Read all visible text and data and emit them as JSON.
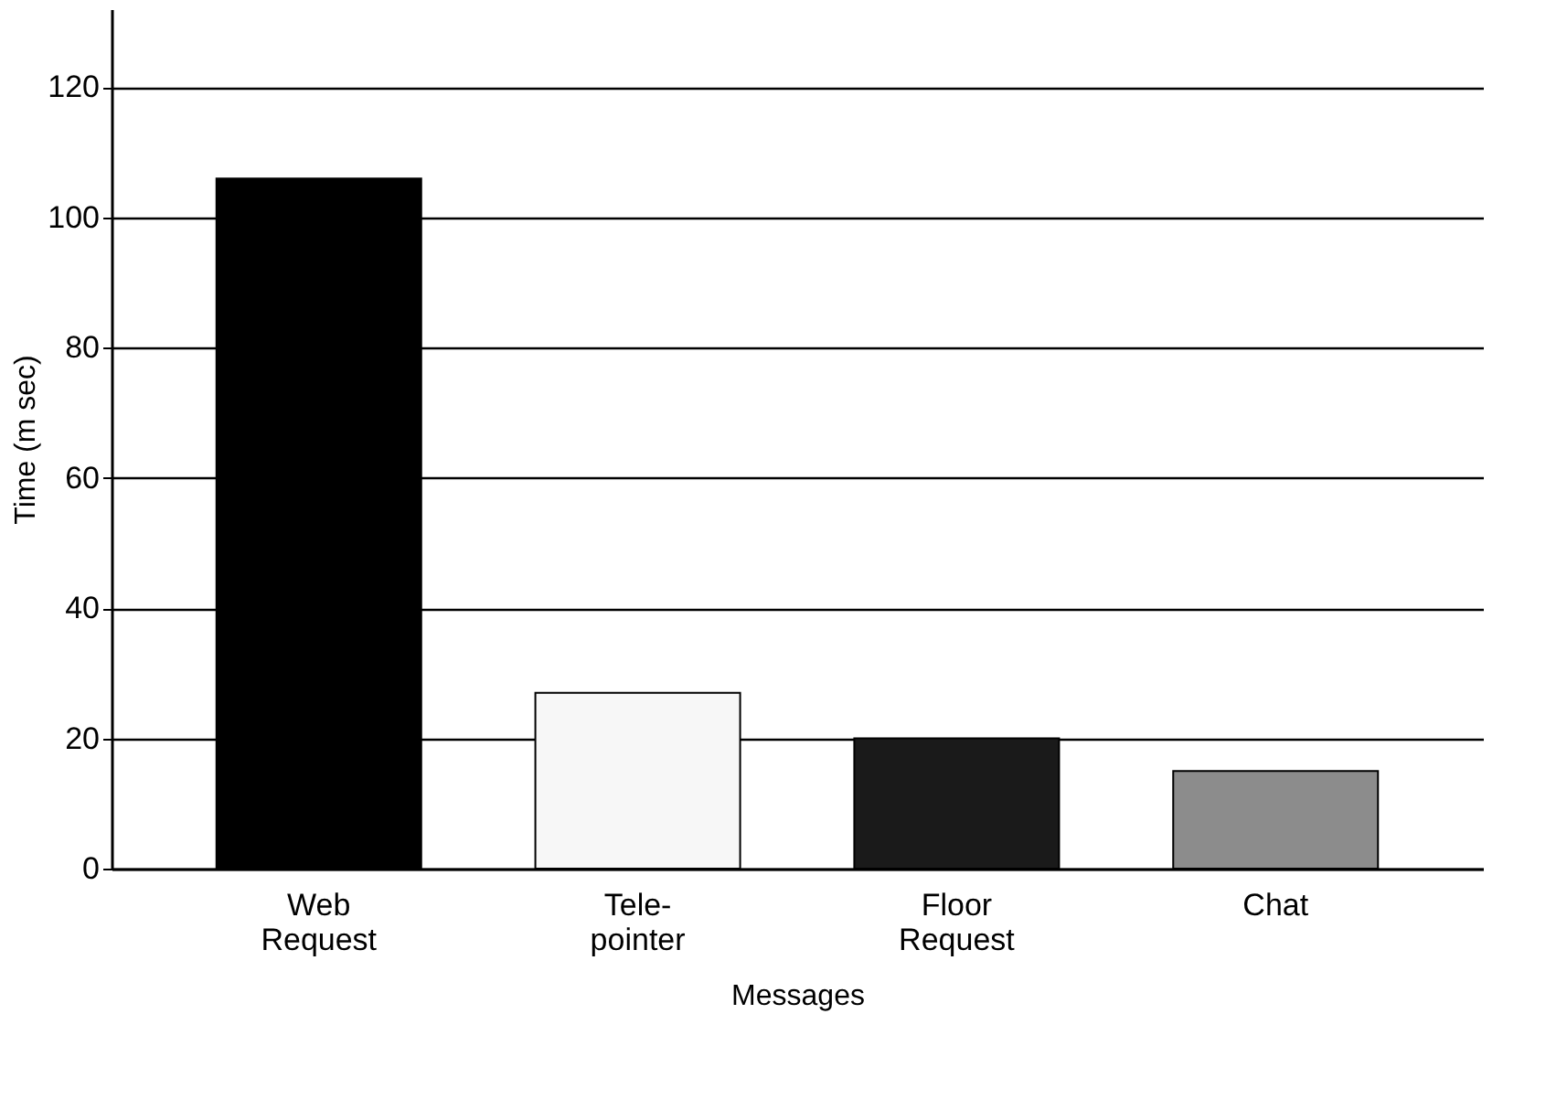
{
  "chart_data": {
    "type": "bar",
    "categories": [
      "Web\nRequest",
      "Tele-\npointer",
      "Floor\nRequest",
      "Chat"
    ],
    "values": [
      106,
      27,
      20,
      15
    ],
    "colors": [
      "#000000",
      "#f7f7f7",
      "#1a1a1a",
      "#8c8c8c"
    ],
    "xlabel": "Messages",
    "ylabel": "Time (m sec)",
    "ylim": [
      0,
      132
    ],
    "yticks": [
      0,
      20,
      40,
      60,
      80,
      100,
      120
    ],
    "grid": "y"
  }
}
